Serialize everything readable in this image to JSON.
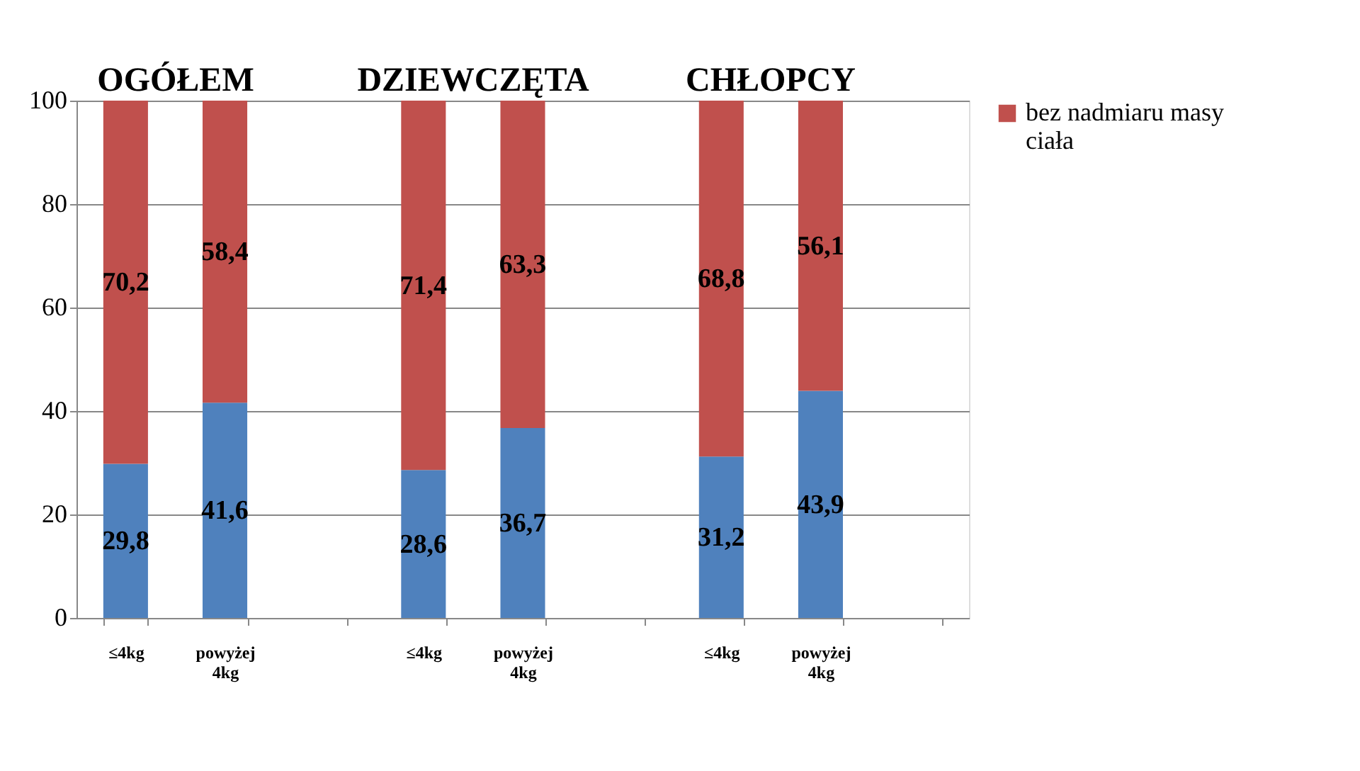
{
  "chart_data": {
    "type": "bar",
    "stacked": true,
    "categories": [
      "≤4kg",
      "powyżej 4kg",
      null,
      "≤4kg",
      "powyżej 4kg",
      null,
      "≤4kg",
      "powyżej 4kg",
      null
    ],
    "series": [
      {
        "color": "#4f81bd",
        "values": [
          29.8,
          41.6,
          null,
          28.6,
          36.7,
          null,
          31.2,
          43.9,
          null
        ],
        "value_labels": [
          "29,8",
          "41,6",
          null,
          "28,6",
          "36,7",
          null,
          "31,2",
          "43,9",
          null
        ]
      },
      {
        "name": "bez nadmiaru masy ciała",
        "color": "#c0504d",
        "values": [
          70.2,
          58.4,
          null,
          71.4,
          63.3,
          null,
          68.8,
          56.1,
          null
        ],
        "value_labels": [
          "70,2",
          "58,4",
          null,
          "71,4",
          "63,3",
          null,
          "68,8",
          "56,1",
          null
        ]
      }
    ],
    "annotations": [
      "OGÓŁEM",
      "DZIEWCZĘTA",
      "CHŁOPCY"
    ],
    "ylim": [
      0,
      100
    ],
    "yticks": [
      0,
      20,
      40,
      60,
      80,
      100
    ],
    "grid": "y",
    "legend": "right"
  }
}
